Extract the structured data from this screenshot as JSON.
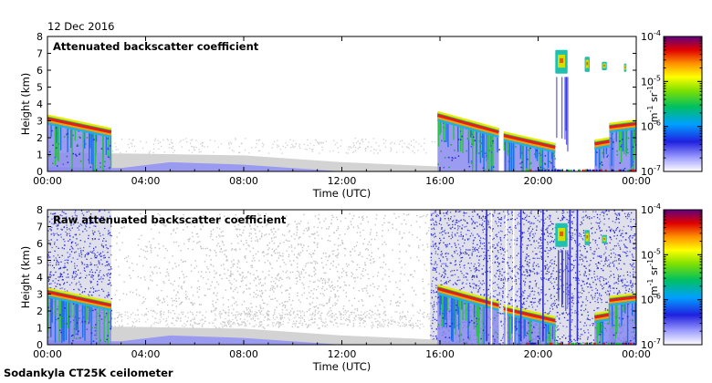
{
  "date_label": "12 Dec 2016",
  "footer_label": "Sodankyla CT25K ceilometer",
  "chart_data": [
    {
      "type": "heatmap",
      "title": "Attenuated backscatter coefficient",
      "xlabel": "Time (UTC)",
      "ylabel": "Height (km)",
      "xlim": [
        0,
        24
      ],
      "ylim": [
        0,
        8
      ],
      "x_ticks": [
        "00:00",
        "04:00",
        "08:00",
        "12:00",
        "16:00",
        "20:00",
        "00:00"
      ],
      "y_ticks": [
        "0",
        "1",
        "2",
        "3",
        "4",
        "5",
        "6",
        "7",
        "8"
      ],
      "colorbar": {
        "label_base": "m",
        "label_exp1": "-1",
        "label_mid": " sr",
        "label_exp2": "-1",
        "scale": "log",
        "range": [
          1e-07,
          0.0001
        ],
        "ticks": [
          {
            "base": "10",
            "exp": "-7"
          },
          {
            "base": "10",
            "exp": "-6"
          },
          {
            "base": "10",
            "exp": "-5"
          },
          {
            "base": "10",
            "exp": "-4"
          }
        ]
      },
      "cloud_layers": [
        {
          "start": 0.0,
          "end": 2.6,
          "top_start": 3.3,
          "top_end": 2.5
        },
        {
          "start": 15.9,
          "end": 18.4,
          "top_start": 3.5,
          "top_end": 2.5
        },
        {
          "start": 18.6,
          "end": 20.7,
          "top_start": 2.3,
          "top_end": 1.6
        },
        {
          "start": 22.3,
          "end": 23.1,
          "top_start": 1.8,
          "top_end": 2.0
        },
        {
          "start": 22.9,
          "end": 24.0,
          "top_start": 2.8,
          "top_end": 3.0
        }
      ],
      "upper_cloud": [
        {
          "start": 20.7,
          "end": 21.2,
          "bottom": 5.8,
          "top": 7.2
        },
        {
          "start": 21.9,
          "end": 22.1,
          "bottom": 5.9,
          "top": 6.8
        },
        {
          "start": 22.6,
          "end": 22.8,
          "bottom": 6.0,
          "top": 6.5
        },
        {
          "start": 23.5,
          "end": 23.6,
          "bottom": 5.9,
          "top": 6.4
        }
      ]
    },
    {
      "type": "heatmap",
      "title": "Raw attenuated backscatter coefficient",
      "xlabel": "Time (UTC)",
      "ylabel": "Height (km)",
      "xlim": [
        0,
        24
      ],
      "ylim": [
        0,
        8
      ],
      "x_ticks": [
        "00:00",
        "04:00",
        "08:00",
        "12:00",
        "16:00",
        "20:00",
        "00:00"
      ],
      "y_ticks": [
        "0",
        "1",
        "2",
        "3",
        "4",
        "5",
        "6",
        "7",
        "8"
      ],
      "colorbar": {
        "label_base": "m",
        "label_exp1": "-1",
        "label_mid": " sr",
        "label_exp2": "-1",
        "scale": "log",
        "range": [
          1e-07,
          0.0001
        ],
        "ticks": [
          {
            "base": "10",
            "exp": "-7"
          },
          {
            "base": "10",
            "exp": "-6"
          },
          {
            "base": "10",
            "exp": "-5"
          },
          {
            "base": "10",
            "exp": "-4"
          }
        ]
      },
      "noise_periods": [
        [
          0.0,
          2.6
        ],
        [
          15.6,
          24.0
        ]
      ],
      "cloud_layers": [
        {
          "start": 0.0,
          "end": 2.6,
          "top_start": 3.3,
          "top_end": 2.5
        },
        {
          "start": 15.9,
          "end": 18.4,
          "top_start": 3.5,
          "top_end": 2.5
        },
        {
          "start": 18.6,
          "end": 20.7,
          "top_start": 2.3,
          "top_end": 1.6
        },
        {
          "start": 22.3,
          "end": 23.1,
          "top_start": 1.8,
          "top_end": 2.0
        },
        {
          "start": 22.9,
          "end": 24.0,
          "top_start": 2.8,
          "top_end": 3.0
        }
      ],
      "upper_cloud": [
        {
          "start": 20.7,
          "end": 21.2,
          "bottom": 5.8,
          "top": 7.2
        },
        {
          "start": 21.9,
          "end": 22.1,
          "bottom": 5.9,
          "top": 6.8
        },
        {
          "start": 22.6,
          "end": 22.8,
          "bottom": 6.0,
          "top": 6.5
        }
      ]
    }
  ]
}
